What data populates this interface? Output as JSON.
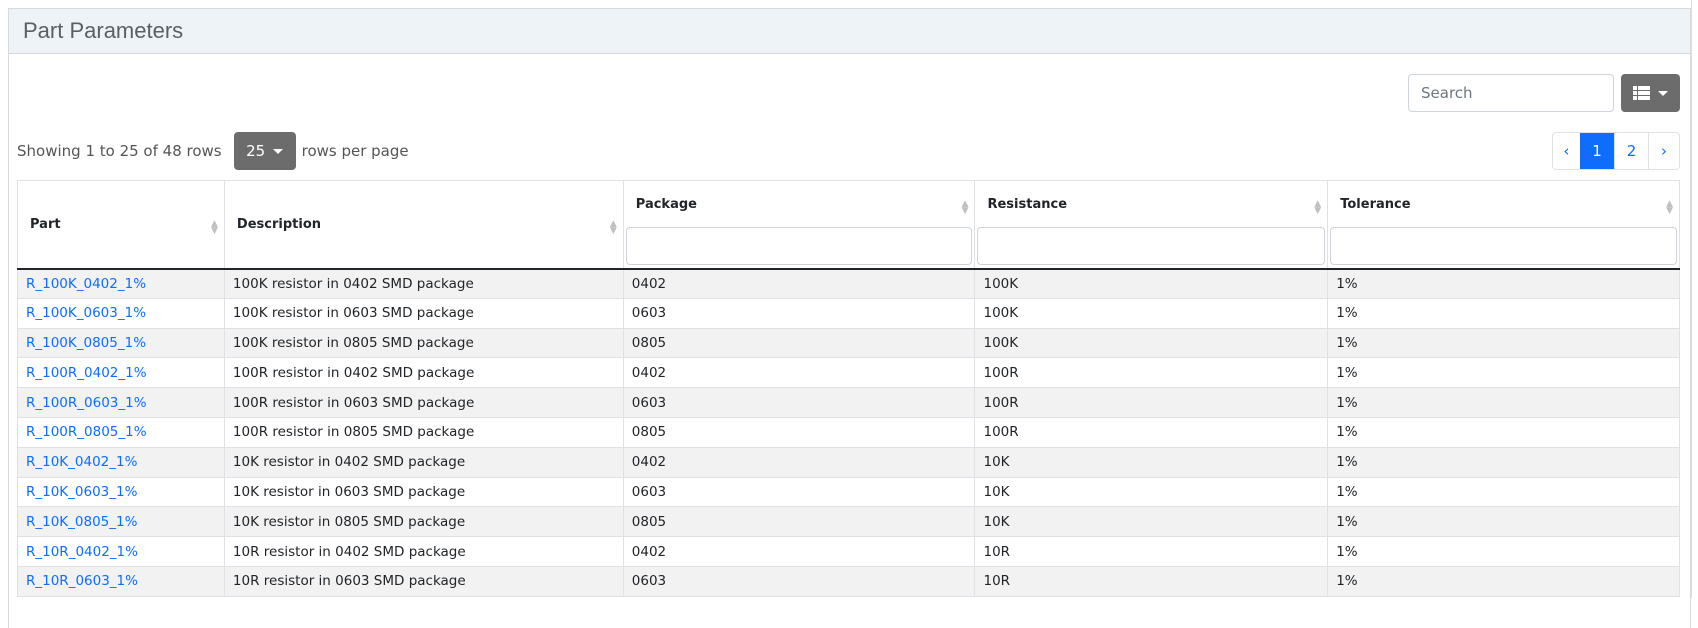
{
  "panel": {
    "title": "Part Parameters"
  },
  "toolbar": {
    "search_placeholder": "Search",
    "columns_icon": "list-icon"
  },
  "pagination": {
    "info": "Showing 1 to 25 of 48 rows",
    "page_size": "25",
    "rows_per_page": "rows per page",
    "prev": "‹",
    "pages": [
      "1",
      "2"
    ],
    "active_page": "1",
    "next": "›"
  },
  "table": {
    "columns": [
      "Part",
      "Description",
      "Package",
      "Resistance",
      "Tolerance"
    ],
    "rows": [
      [
        "R_100K_0402_1%",
        "100K resistor in 0402 SMD package",
        "0402",
        "100K",
        "1%"
      ],
      [
        "R_100K_0603_1%",
        "100K resistor in 0603 SMD package",
        "0603",
        "100K",
        "1%"
      ],
      [
        "R_100K_0805_1%",
        "100K resistor in 0805 SMD package",
        "0805",
        "100K",
        "1%"
      ],
      [
        "R_100R_0402_1%",
        "100R resistor in 0402 SMD package",
        "0402",
        "100R",
        "1%"
      ],
      [
        "R_100R_0603_1%",
        "100R resistor in 0603 SMD package",
        "0603",
        "100R",
        "1%"
      ],
      [
        "R_100R_0805_1%",
        "100R resistor in 0805 SMD package",
        "0805",
        "100R",
        "1%"
      ],
      [
        "R_10K_0402_1%",
        "10K resistor in 0402 SMD package",
        "0402",
        "10K",
        "1%"
      ],
      [
        "R_10K_0603_1%",
        "10K resistor in 0603 SMD package",
        "0603",
        "10K",
        "1%"
      ],
      [
        "R_10K_0805_1%",
        "10K resistor in 0805 SMD package",
        "0805",
        "10K",
        "1%"
      ],
      [
        "R_10R_0402_1%",
        "10R resistor in 0402 SMD package",
        "0402",
        "10R",
        "1%"
      ],
      [
        "R_10R_0603_1%",
        "10R resistor in 0603 SMD package",
        "0603",
        "10R",
        "1%"
      ]
    ]
  },
  "colors": {
    "link": "#0d6efd",
    "active_page": "#0d6efd",
    "button": "#6c6c6c",
    "header_bg": "#eef3f7",
    "stripe": "#f2f2f2"
  }
}
